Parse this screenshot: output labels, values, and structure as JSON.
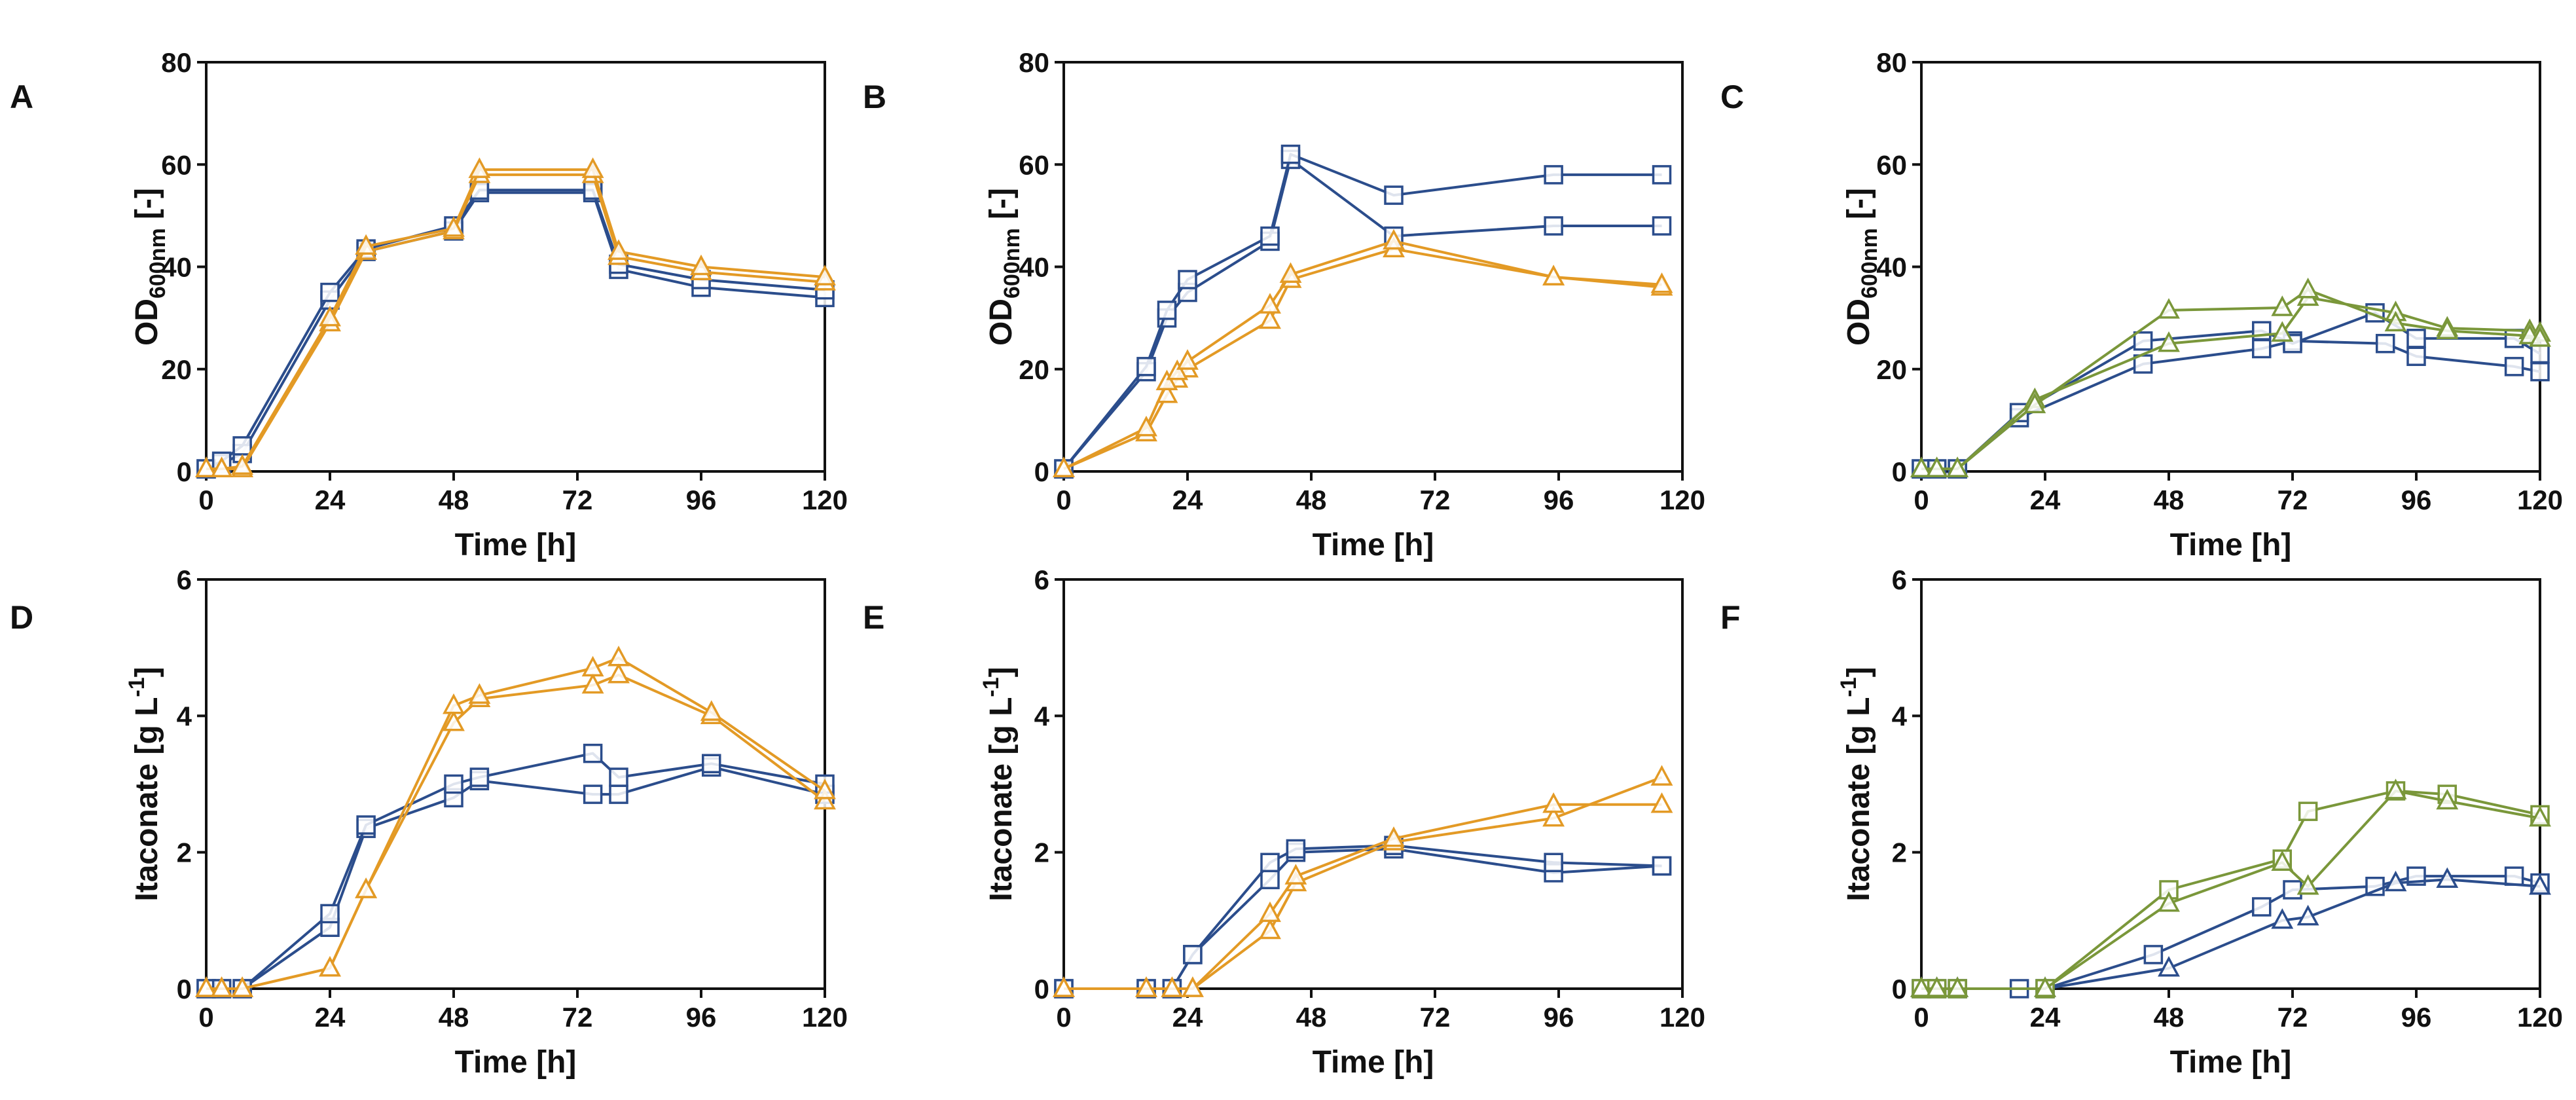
{
  "colors": {
    "blue": "#2b4d8c",
    "orange": "#e39a25",
    "green": "#7a973a",
    "axis": "#111111"
  },
  "chart_data": [
    {
      "panel": "A",
      "type": "line",
      "xlabel": "Time [h]",
      "ylabel_main": "OD",
      "ylabel_sub": "600nm",
      "ylabel_unit": " [-]",
      "xlim": [
        0,
        120
      ],
      "ylim": [
        0,
        80
      ],
      "xticks": [
        "0",
        "24",
        "48",
        "72",
        "96",
        "120"
      ],
      "yticks": [
        "0",
        "20",
        "40",
        "60",
        "80"
      ],
      "series": [
        {
          "name": "blue-1",
          "color": "blue",
          "marker": "square",
          "x": [
            0,
            3,
            7,
            24,
            31,
            48,
            53,
            75,
            80,
            96,
            120
          ],
          "y": [
            0.5,
            1.5,
            3.5,
            33.5,
            43,
            47,
            54.5,
            54.5,
            39.5,
            36,
            34
          ]
        },
        {
          "name": "blue-2",
          "color": "blue",
          "marker": "square",
          "x": [
            0,
            3,
            7,
            24,
            31,
            48,
            53,
            75,
            80,
            96,
            120
          ],
          "y": [
            0.5,
            2,
            5,
            35,
            43.5,
            48,
            55,
            55,
            40.5,
            37.5,
            35.5
          ]
        },
        {
          "name": "orange-1",
          "color": "orange",
          "marker": "triangle",
          "x": [
            0,
            3,
            7,
            24,
            31,
            48,
            53,
            75,
            80,
            96,
            120
          ],
          "y": [
            0.5,
            0.5,
            0.5,
            29,
            43,
            47,
            58,
            58,
            42,
            39,
            37
          ]
        },
        {
          "name": "orange-2",
          "color": "orange",
          "marker": "triangle",
          "x": [
            0,
            3,
            7,
            24,
            31,
            48,
            53,
            75,
            80,
            96,
            120
          ],
          "y": [
            0.5,
            0.5,
            1,
            30,
            44,
            47.5,
            59,
            59,
            43,
            40,
            38
          ]
        }
      ]
    },
    {
      "panel": "B",
      "type": "line",
      "xlabel": "Time [h]",
      "ylabel_main": "OD",
      "ylabel_sub": "600nm",
      "ylabel_unit": " [-]",
      "xlim": [
        0,
        120
      ],
      "ylim": [
        0,
        80
      ],
      "xticks": [
        "0",
        "24",
        "48",
        "72",
        "96",
        "120"
      ],
      "yticks": [
        "0",
        "20",
        "40",
        "60",
        "80"
      ],
      "series": [
        {
          "name": "blue-1",
          "color": "blue",
          "marker": "square",
          "x": [
            0,
            16,
            20,
            24,
            40,
            44,
            64,
            95,
            116
          ],
          "y": [
            0.5,
            19.5,
            30,
            35,
            45,
            61,
            46,
            48,
            48
          ]
        },
        {
          "name": "blue-2",
          "color": "blue",
          "marker": "square",
          "x": [
            0,
            16,
            20,
            24,
            40,
            44,
            64,
            95,
            116
          ],
          "y": [
            0.5,
            20.5,
            31.5,
            37.5,
            46,
            62,
            54,
            58,
            58
          ]
        },
        {
          "name": "orange-1",
          "color": "orange",
          "marker": "triangle",
          "x": [
            0,
            16,
            20,
            22,
            24,
            40,
            44,
            64,
            95,
            116
          ],
          "y": [
            0.5,
            7.5,
            15,
            18,
            20,
            29.5,
            37.5,
            43.5,
            38,
            36
          ]
        },
        {
          "name": "orange-2",
          "color": "orange",
          "marker": "triangle",
          "x": [
            0,
            16,
            20,
            22,
            24,
            40,
            44,
            64,
            95,
            116
          ],
          "y": [
            0.5,
            8.5,
            17.5,
            19.5,
            21.5,
            32.5,
            38.5,
            45,
            38,
            36.5
          ]
        }
      ]
    },
    {
      "panel": "C",
      "type": "line",
      "xlabel": "Time [h]",
      "ylabel_main": "OD",
      "ylabel_sub": "600nm",
      "ylabel_unit": " [-]",
      "xlim": [
        0,
        120
      ],
      "ylim": [
        0,
        80
      ],
      "xticks": [
        "0",
        "24",
        "48",
        "72",
        "96",
        "120"
      ],
      "yticks": [
        "0",
        "20",
        "40",
        "60",
        "80"
      ],
      "series": [
        {
          "name": "blue-1",
          "color": "blue",
          "marker": "square",
          "x": [
            0,
            3,
            7,
            19,
            43,
            66,
            72,
            90,
            96,
            115,
            120
          ],
          "y": [
            0.5,
            0.5,
            0.5,
            10.5,
            21,
            24,
            25.5,
            25,
            22.5,
            20.5,
            19.5
          ]
        },
        {
          "name": "blue-2",
          "color": "blue",
          "marker": "square",
          "x": [
            0,
            3,
            7,
            19,
            43,
            66,
            72,
            88,
            96,
            115,
            120
          ],
          "y": [
            0.5,
            0.5,
            0.5,
            11.5,
            25.5,
            27.5,
            25,
            31,
            26,
            26,
            23
          ]
        },
        {
          "name": "green-1",
          "color": "green",
          "marker": "triangle",
          "x": [
            0,
            3,
            7,
            22,
            48,
            70,
            75,
            92,
            102,
            118,
            120
          ],
          "y": [
            0.5,
            0.5,
            0.5,
            14,
            25,
            27,
            34,
            31,
            28,
            27.5,
            27
          ]
        },
        {
          "name": "green-2",
          "color": "green",
          "marker": "triangle",
          "x": [
            0,
            3,
            7,
            22,
            48,
            70,
            75,
            92,
            102,
            118,
            120
          ],
          "y": [
            0.5,
            0.5,
            0.5,
            13,
            31.5,
            32,
            35.5,
            29,
            27.5,
            26.5,
            26
          ]
        }
      ]
    },
    {
      "panel": "D",
      "type": "line",
      "xlabel": "Time [h]",
      "ylabel_main": "Itaconate [g L",
      "ylabel_sup": "-1",
      "ylabel_end": "]",
      "xlim": [
        0,
        120
      ],
      "ylim": [
        0,
        6
      ],
      "xticks": [
        "0",
        "24",
        "48",
        "72",
        "96",
        "120"
      ],
      "yticks": [
        "0",
        "2",
        "4",
        "6"
      ],
      "series": [
        {
          "name": "blue-1",
          "color": "blue",
          "marker": "square",
          "x": [
            0,
            3,
            7,
            24,
            31,
            48,
            53,
            75,
            80,
            98,
            120
          ],
          "y": [
            0,
            0,
            0,
            0.9,
            2.35,
            2.8,
            3.05,
            2.85,
            2.85,
            3.25,
            2.85
          ]
        },
        {
          "name": "blue-2",
          "color": "blue",
          "marker": "square",
          "x": [
            0,
            3,
            7,
            24,
            31,
            48,
            53,
            75,
            80,
            98,
            120
          ],
          "y": [
            0,
            0,
            0,
            1.1,
            2.4,
            3.0,
            3.1,
            3.45,
            3.1,
            3.3,
            3.0
          ]
        },
        {
          "name": "orange-1",
          "color": "orange",
          "marker": "triangle",
          "x": [
            0,
            3,
            7,
            24,
            31,
            48,
            53,
            75,
            80,
            98,
            120
          ],
          "y": [
            0,
            0,
            0,
            0.3,
            1.45,
            3.9,
            4.25,
            4.45,
            4.6,
            4.0,
            2.75
          ]
        },
        {
          "name": "orange-2",
          "color": "orange",
          "marker": "triangle",
          "x": [
            0,
            3,
            7,
            24,
            31,
            48,
            53,
            75,
            80,
            98,
            120
          ],
          "y": [
            0,
            0,
            0,
            0.3,
            1.45,
            4.15,
            4.3,
            4.7,
            4.85,
            4.05,
            2.9
          ]
        }
      ]
    },
    {
      "panel": "E",
      "type": "line",
      "xlabel": "Time [h]",
      "ylabel_main": "Itaconate [g L",
      "ylabel_sup": "-1",
      "ylabel_end": "]",
      "xlim": [
        0,
        120
      ],
      "ylim": [
        0,
        6
      ],
      "xticks": [
        "0",
        "24",
        "48",
        "72",
        "96",
        "120"
      ],
      "yticks": [
        "0",
        "2",
        "4",
        "6"
      ],
      "series": [
        {
          "name": "blue-1",
          "color": "blue",
          "marker": "square",
          "x": [
            0,
            16,
            21,
            25,
            40,
            45,
            64,
            95,
            116
          ],
          "y": [
            0,
            0,
            0,
            0.5,
            1.6,
            2.0,
            2.05,
            1.7,
            1.8
          ]
        },
        {
          "name": "blue-2",
          "color": "blue",
          "marker": "square",
          "x": [
            0,
            16,
            21,
            25,
            40,
            45,
            64,
            95,
            116
          ],
          "y": [
            0,
            0,
            0,
            0.5,
            1.85,
            2.05,
            2.1,
            1.85,
            1.8
          ]
        },
        {
          "name": "orange-1",
          "color": "orange",
          "marker": "triangle",
          "x": [
            0,
            16,
            21,
            25,
            40,
            45,
            64,
            95,
            116
          ],
          "y": [
            0,
            0,
            0,
            0,
            0.85,
            1.55,
            2.15,
            2.5,
            3.1
          ]
        },
        {
          "name": "orange-2",
          "color": "orange",
          "marker": "triangle",
          "x": [
            0,
            16,
            21,
            25,
            40,
            45,
            64,
            95,
            116
          ],
          "y": [
            0,
            0,
            0,
            0,
            1.1,
            1.65,
            2.2,
            2.7,
            2.7
          ]
        }
      ]
    },
    {
      "panel": "F",
      "type": "line",
      "xlabel": "Time [h]",
      "ylabel_main": "Itaconate [g L",
      "ylabel_sup": "-1",
      "ylabel_end": "]",
      "xlim": [
        0,
        120
      ],
      "ylim": [
        0,
        6
      ],
      "xticks": [
        "0",
        "24",
        "48",
        "72",
        "96",
        "120"
      ],
      "yticks": [
        "0",
        "2",
        "4",
        "6"
      ],
      "series": [
        {
          "name": "blue-1",
          "color": "blue",
          "marker": "square",
          "x": [
            0,
            3,
            7,
            19,
            24,
            45,
            66,
            72,
            88,
            96,
            115,
            120
          ],
          "y": [
            0,
            0,
            0,
            0,
            0,
            0.5,
            1.2,
            1.45,
            1.5,
            1.65,
            1.65,
            1.55
          ]
        },
        {
          "name": "blue-2",
          "color": "blue",
          "marker": "triangle",
          "x": [
            0,
            3,
            7,
            24,
            48,
            70,
            75,
            92,
            102,
            120
          ],
          "y": [
            0,
            0,
            0,
            0,
            0.3,
            1.0,
            1.05,
            1.55,
            1.6,
            1.5
          ]
        },
        {
          "name": "green-1",
          "color": "green",
          "marker": "square",
          "x": [
            0,
            3,
            7,
            24,
            48,
            70,
            75,
            92,
            102,
            120
          ],
          "y": [
            0,
            0,
            0,
            0,
            1.45,
            1.9,
            2.6,
            2.9,
            2.85,
            2.55
          ]
        },
        {
          "name": "green-2",
          "color": "green",
          "marker": "triangle",
          "x": [
            0,
            3,
            7,
            24,
            48,
            70,
            75,
            92,
            102,
            120
          ],
          "y": [
            0,
            0,
            0,
            0,
            1.25,
            1.85,
            1.5,
            2.9,
            2.75,
            2.5
          ]
        }
      ]
    }
  ]
}
